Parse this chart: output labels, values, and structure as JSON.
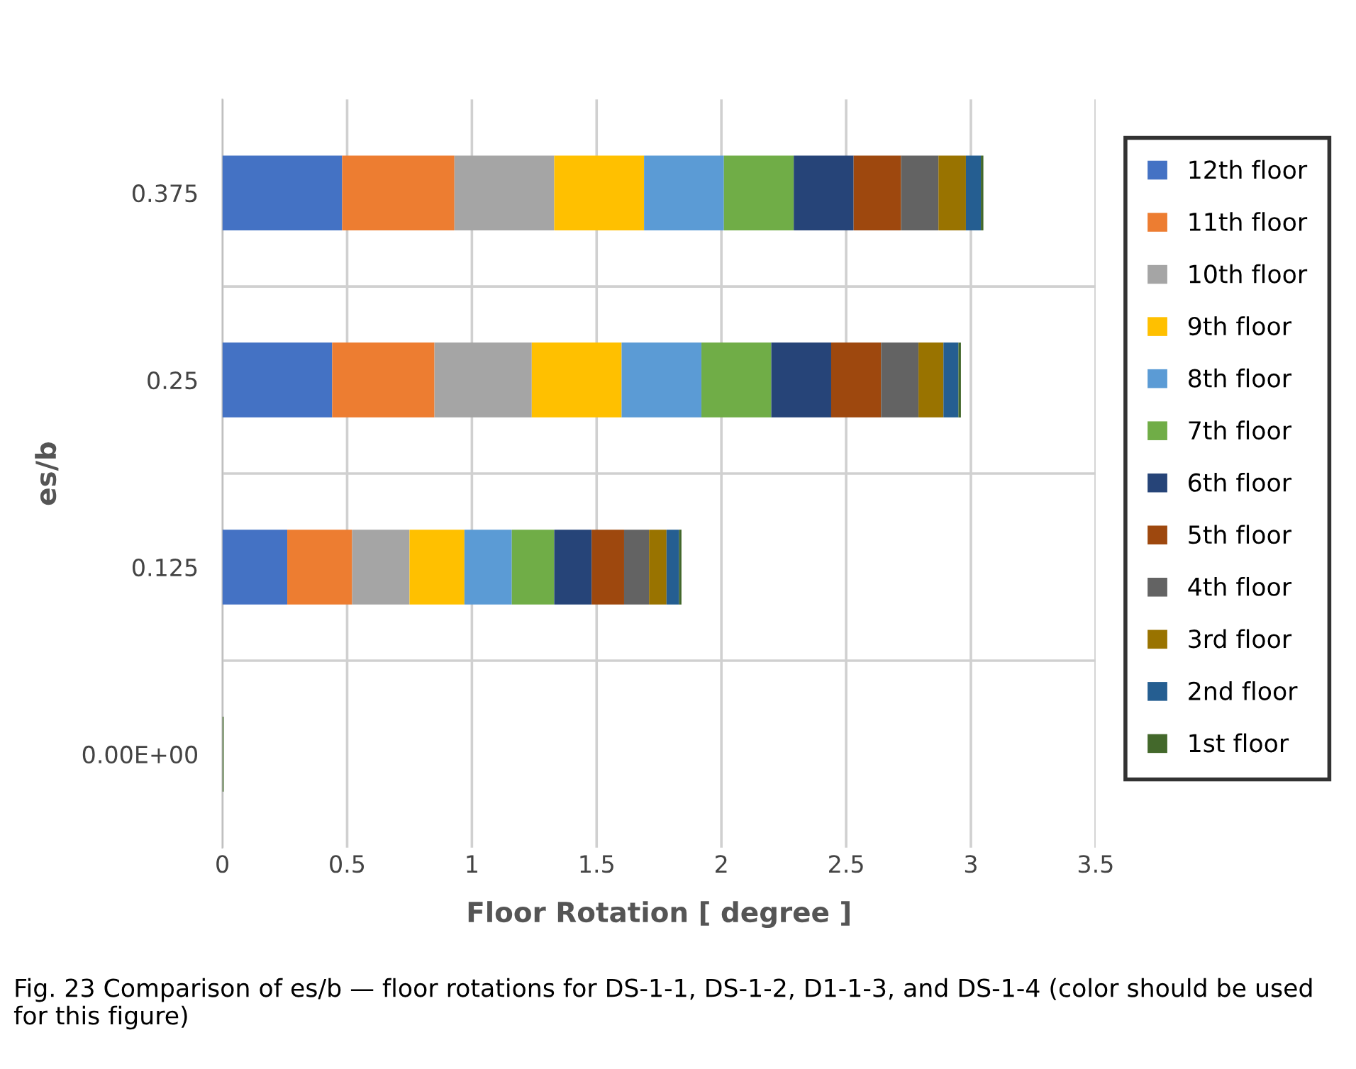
{
  "chart_data": {
    "type": "bar",
    "orientation": "horizontal",
    "stacked": true,
    "xlabel": "Floor Rotation [ degree ]",
    "ylabel": "es/b",
    "categories": [
      "0.375",
      "0.25",
      "0.125",
      "0.00E+00"
    ],
    "series": [
      {
        "name": "12th floor",
        "color": "#4472c4",
        "values": [
          0.48,
          0.44,
          0.26,
          0
        ]
      },
      {
        "name": "11th floor",
        "color": "#ed7d31",
        "values": [
          0.45,
          0.41,
          0.26,
          0
        ]
      },
      {
        "name": "10th floor",
        "color": "#a5a5a5",
        "values": [
          0.4,
          0.39,
          0.23,
          0
        ]
      },
      {
        "name": "9th floor",
        "color": "#ffc000",
        "values": [
          0.36,
          0.36,
          0.22,
          0
        ]
      },
      {
        "name": "8th floor",
        "color": "#5b9bd5",
        "values": [
          0.32,
          0.32,
          0.19,
          0
        ]
      },
      {
        "name": "7th floor",
        "color": "#70ad47",
        "values": [
          0.28,
          0.28,
          0.17,
          0
        ]
      },
      {
        "name": "6th floor",
        "color": "#264478",
        "values": [
          0.24,
          0.24,
          0.15,
          0
        ]
      },
      {
        "name": "5th floor",
        "color": "#9e480e",
        "values": [
          0.19,
          0.2,
          0.13,
          0
        ]
      },
      {
        "name": "4th floor",
        "color": "#636363",
        "values": [
          0.15,
          0.15,
          0.1,
          0
        ]
      },
      {
        "name": "3rd floor",
        "color": "#997300",
        "values": [
          0.11,
          0.1,
          0.07,
          0
        ]
      },
      {
        "name": "2nd floor",
        "color": "#255e91",
        "values": [
          0.06,
          0.06,
          0.05,
          0
        ]
      },
      {
        "name": "1st floor",
        "color": "#43682b",
        "values": [
          0.01,
          0.01,
          0.01,
          0.005
        ]
      }
    ],
    "xlim": [
      0,
      3.5
    ],
    "xticks": [
      0,
      0.5,
      1,
      1.5,
      2,
      2.5,
      3,
      3.5
    ],
    "grid": true,
    "legend": "right",
    "annotations": [
      "Fig. 23 Comparison of es/b — floor rotations for DS-1-1, DS-1-2, D1-1-3, and DS-1-4 (color should be used for this figure)"
    ]
  }
}
